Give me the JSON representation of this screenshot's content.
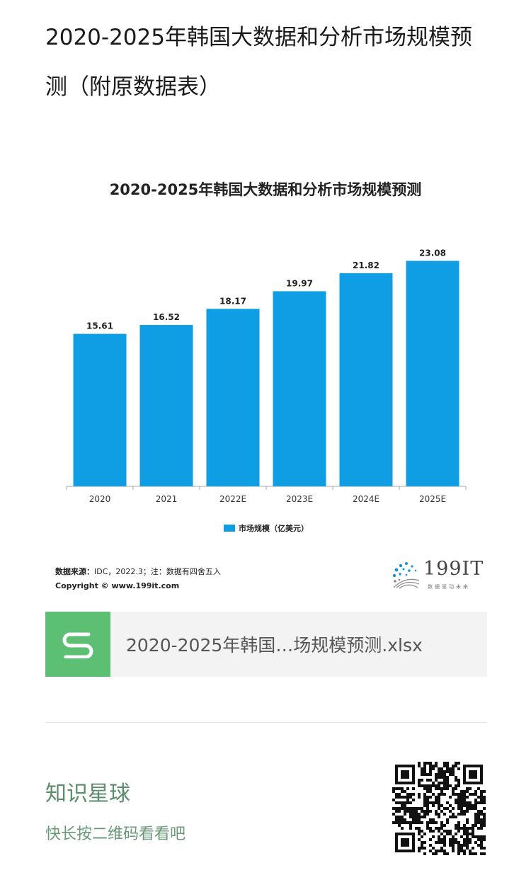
{
  "article": {
    "title": "2020-2025年韩国大数据和分析市场规模预测（附原数据表）"
  },
  "chart": {
    "source_label": "数据来源：",
    "source_text": "IDC，2022.3；注：数据有四舍五入",
    "copyright": "Copyright © www.199it.com",
    "brand_name": "199IT",
    "brand_slogan": "数据驱动未来"
  },
  "chart_data": {
    "type": "bar",
    "title": "2020-2025年韩国大数据和分析市场规模预测",
    "categories": [
      "2020",
      "2021",
      "2022E",
      "2023E",
      "2024E",
      "2025E"
    ],
    "series": [
      {
        "name": "市场规模（亿美元）",
        "values": [
          15.61,
          16.52,
          18.17,
          19.97,
          21.82,
          23.08
        ],
        "color": "#0f9ee3"
      }
    ],
    "ylim": [
      0,
      25
    ],
    "grid": false,
    "legend_position": "bottom",
    "xlabel": "",
    "ylabel": ""
  },
  "attachment": {
    "icon": "spreadsheet-icon",
    "icon_color": "#5cbf73",
    "filename": "2020-2025年韩国…场规模预测.xlsx"
  },
  "promo": {
    "title": "知识星球",
    "subtitle": "快长按二维码看看吧"
  }
}
